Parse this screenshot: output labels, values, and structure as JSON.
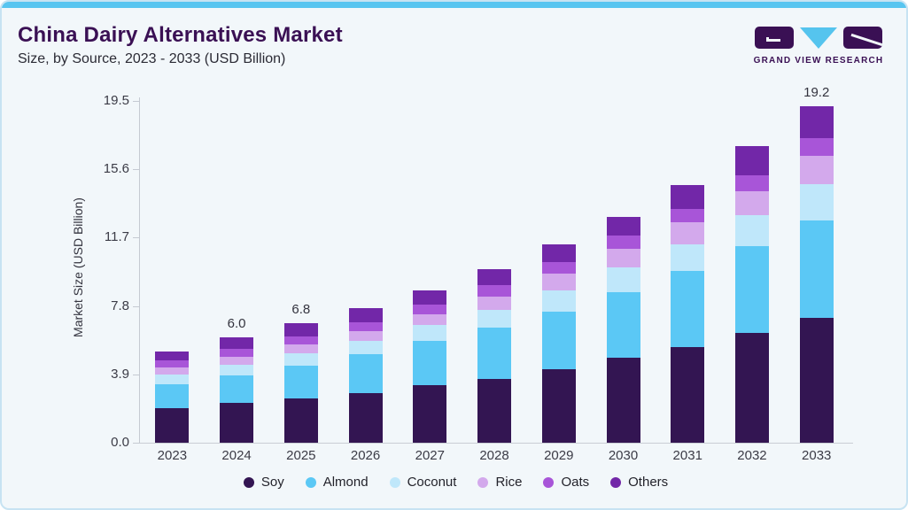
{
  "header": {
    "title": "China Dairy Alternatives Market",
    "subtitle": "Size, by Source, 2023 - 2033 (USD Billion)"
  },
  "logo": {
    "caption": "GRAND VIEW RESEARCH",
    "mark_color": "#3A1054",
    "triangle_color": "#55C4EE"
  },
  "colors": {
    "accent_strip": "#58C5F0",
    "card_background": "#F2F7FA",
    "card_border": "#C7E3F2",
    "title_text": "#3A1054",
    "axis_text": "#3B3B46",
    "axis_line": "#C5CAD2"
  },
  "chart_data": {
    "type": "bar",
    "stacked": true,
    "title": "China Dairy Alternatives Market Size, by Source, 2023 - 2033 (USD Billion)",
    "xlabel": "",
    "ylabel": "Market Size (USD Billion)",
    "ylim": [
      0,
      19.5
    ],
    "yticks": [
      0.0,
      3.9,
      7.8,
      11.7,
      15.6,
      19.5
    ],
    "ytick_labels": [
      "0.0",
      "3.9",
      "7.8",
      "11.7",
      "15.6",
      "19.5"
    ],
    "grid": false,
    "legend_position": "bottom",
    "categories": [
      "2023",
      "2024",
      "2025",
      "2026",
      "2027",
      "2028",
      "2029",
      "2030",
      "2031",
      "2032",
      "2033"
    ],
    "series": [
      {
        "name": "Soy",
        "color": "#331552",
        "values": [
          1.95,
          2.25,
          2.55,
          2.85,
          3.3,
          3.65,
          4.2,
          4.85,
          5.45,
          6.25,
          7.1
        ]
      },
      {
        "name": "Almond",
        "color": "#5BC8F5",
        "values": [
          1.4,
          1.6,
          1.85,
          2.2,
          2.5,
          2.9,
          3.25,
          3.75,
          4.35,
          4.95,
          5.6
        ]
      },
      {
        "name": "Coconut",
        "color": "#BFE7FA",
        "values": [
          0.54,
          0.6,
          0.7,
          0.76,
          0.9,
          1.02,
          1.22,
          1.38,
          1.52,
          1.8,
          2.07
        ]
      },
      {
        "name": "Rice",
        "color": "#D3A9EC",
        "values": [
          0.4,
          0.46,
          0.52,
          0.56,
          0.62,
          0.78,
          0.95,
          1.1,
          1.25,
          1.35,
          1.58
        ]
      },
      {
        "name": "Oats",
        "color": "#A855D8",
        "values": [
          0.4,
          0.44,
          0.46,
          0.52,
          0.55,
          0.62,
          0.68,
          0.72,
          0.77,
          0.92,
          1.01
        ]
      },
      {
        "name": "Others",
        "color": "#7227A8",
        "values": [
          0.51,
          0.65,
          0.72,
          0.81,
          0.83,
          0.93,
          1.0,
          1.1,
          1.36,
          1.63,
          1.84
        ]
      }
    ],
    "totals": [
      5.2,
      6.0,
      6.8,
      7.7,
      8.7,
      9.9,
      11.3,
      12.9,
      14.7,
      16.9,
      19.2
    ],
    "bar_value_labels": {
      "2024": "6.0",
      "2025": "6.8",
      "2033": "19.2"
    }
  }
}
